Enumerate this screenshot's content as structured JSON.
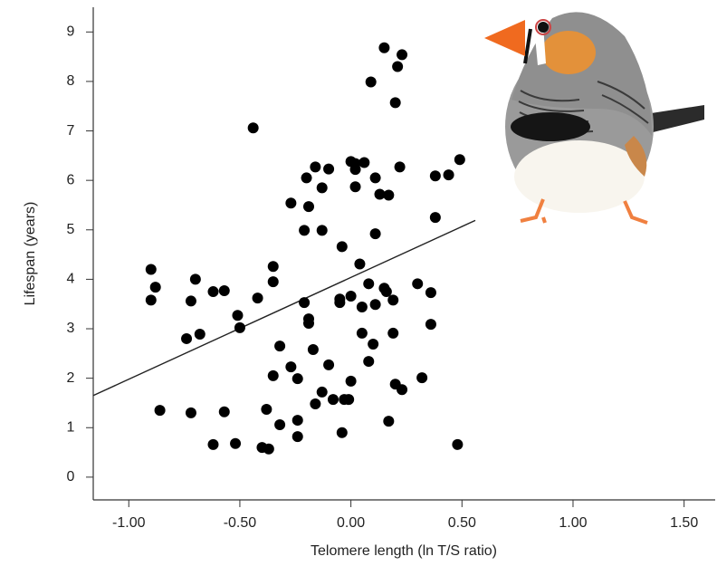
{
  "chart_data": {
    "type": "scatter",
    "x_label": "Telomere length (ln T/S ratio)",
    "y_label": "Lifespan (years)",
    "color": "#000000",
    "xlim": [
      -1.16,
      1.64
    ],
    "ylim": [
      -0.46,
      9.5
    ],
    "xticks": [
      {
        "value": -1,
        "label": "-1.00"
      },
      {
        "value": -0.5,
        "label": "-0.50"
      },
      {
        "value": 0,
        "label": "0.00"
      },
      {
        "value": 0.5,
        "label": "0.50"
      },
      {
        "value": 1,
        "label": "1.00"
      },
      {
        "value": 1.5,
        "label": "1.50"
      }
    ],
    "yticks": [
      0,
      1,
      2,
      3,
      4,
      5,
      6,
      7,
      8,
      9
    ],
    "x": [
      -0.9,
      -0.88,
      -0.9,
      -0.86,
      -0.7,
      -0.72,
      -0.68,
      -0.74,
      -0.72,
      -0.62,
      -0.57,
      -0.57,
      -0.62,
      -0.51,
      -0.5,
      -0.52,
      -0.44,
      -0.42,
      -0.35,
      -0.35,
      -0.4,
      -0.37,
      -0.38,
      -0.35,
      -0.32,
      -0.32,
      -0.27,
      -0.27,
      -0.24,
      -0.24,
      -0.24,
      -0.21,
      -0.2,
      -0.19,
      -0.21,
      -0.19,
      -0.19,
      -0.17,
      -0.16,
      -0.16,
      -0.13,
      -0.13,
      -0.13,
      -0.1,
      -0.1,
      -0.08,
      -0.05,
      -0.05,
      -0.04,
      -0.04,
      -0.03,
      -0.01,
      0.0,
      0.0,
      0.0,
      0.02,
      0.02,
      0.02,
      0.04,
      0.05,
      0.05,
      0.06,
      0.08,
      0.08,
      0.11,
      0.1,
      0.11,
      0.09,
      0.11,
      0.13,
      0.15,
      0.15,
      0.16,
      0.17,
      0.17,
      0.19,
      0.19,
      0.2,
      0.21,
      0.2,
      0.23,
      0.23,
      0.22,
      0.3,
      0.32,
      0.36,
      0.36,
      0.38,
      0.38,
      0.44,
      0.49,
      0.48
    ],
    "values": [
      4.2,
      3.84,
      3.58,
      1.35,
      4.0,
      3.56,
      2.89,
      2.8,
      1.3,
      3.75,
      3.77,
      1.32,
      0.66,
      3.27,
      3.02,
      0.68,
      7.06,
      3.62,
      4.26,
      3.95,
      0.6,
      0.57,
      1.37,
      2.05,
      2.65,
      1.06,
      2.23,
      5.54,
      1.99,
      1.15,
      0.82,
      4.99,
      6.05,
      5.47,
      3.53,
      3.2,
      3.11,
      2.58,
      1.48,
      6.27,
      5.85,
      4.99,
      1.72,
      6.23,
      2.27,
      1.57,
      3.53,
      3.6,
      4.66,
      0.9,
      1.57,
      1.57,
      1.94,
      3.66,
      6.38,
      6.22,
      6.34,
      5.87,
      4.31,
      3.44,
      2.91,
      6.36,
      2.34,
      3.91,
      3.49,
      2.69,
      4.92,
      7.99,
      6.05,
      5.72,
      8.68,
      3.82,
      3.75,
      5.7,
      1.13,
      3.58,
      2.91,
      1.88,
      8.3,
      7.57,
      1.77,
      8.54,
      6.27,
      3.91,
      2.01,
      3.73,
      3.09,
      5.25,
      6.09,
      6.11,
      6.42,
      0.66
    ],
    "fit_line": {
      "x": [
        -1.16,
        0.56
      ],
      "y": [
        1.65,
        5.19
      ]
    }
  }
}
